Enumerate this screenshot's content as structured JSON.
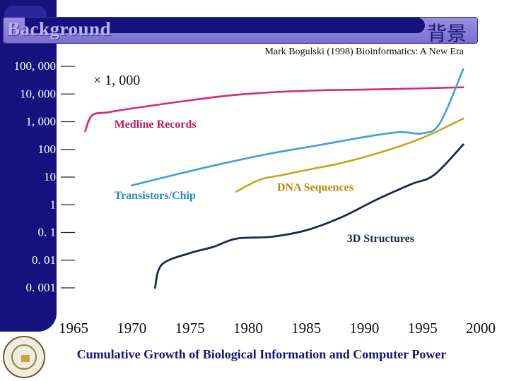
{
  "header": {
    "title": "Background",
    "title_zh": "背景",
    "source": "Mark Bogulski (1998) Bioinformatics: A New Era"
  },
  "colors": {
    "sidebar": "#15127e",
    "title_bar": "#8a7fd8",
    "medline": "#d22a73",
    "transistors": "#3f9ee0",
    "dna": "#c8a41c",
    "structures": "#1b2a4a"
  },
  "chart_data": {
    "type": "line",
    "title": "Cumulative Growth of Biological Information and Computer Power",
    "xlabel": "",
    "ylabel": "",
    "yscale": "log",
    "xlim": [
      1965,
      2000
    ],
    "ylim": [
      0.001,
      100000
    ],
    "x_ticks": [
      "1965",
      "1970",
      "1975",
      "1980",
      "1985",
      "1990",
      "1995",
      "2000"
    ],
    "y_ticks": [
      "100, 000",
      "10, 000",
      "1, 000",
      "100",
      "10",
      "1",
      "0. 1",
      "0. 01",
      "0. 001"
    ],
    "annotation": "× 1, 000",
    "series": [
      {
        "name": "Medline Records",
        "label_pos": [
          1968.5,
          600
        ],
        "points": [
          [
            1966,
            450
          ],
          [
            1966.6,
            1700
          ],
          [
            1968,
            2200
          ],
          [
            1970,
            3000
          ],
          [
            1974,
            5200
          ],
          [
            1978,
            8500
          ],
          [
            1982,
            11500
          ],
          [
            1986,
            13500
          ],
          [
            1990,
            14500
          ],
          [
            1995,
            16000
          ],
          [
            1998.5,
            17500
          ]
        ]
      },
      {
        "name": "Transistors/Chip",
        "label_pos": [
          1968.5,
          1.6
        ],
        "points": [
          [
            1970,
            5
          ],
          [
            1974,
            13
          ],
          [
            1978,
            32
          ],
          [
            1982,
            72
          ],
          [
            1986,
            140
          ],
          [
            1990,
            280
          ],
          [
            1993,
            420
          ],
          [
            1995,
            380
          ],
          [
            1996.5,
            900
          ],
          [
            1998.5,
            80000
          ]
        ]
      },
      {
        "name": "DNA Sequences",
        "label_pos": [
          1982.5,
          3.2
        ],
        "points": [
          [
            1979,
            3
          ],
          [
            1981,
            8
          ],
          [
            1983,
            12
          ],
          [
            1985,
            18
          ],
          [
            1988,
            32
          ],
          [
            1991,
            70
          ],
          [
            1994,
            180
          ],
          [
            1996,
            400
          ],
          [
            1998.5,
            1300
          ]
        ]
      },
      {
        "name": "3D Structures",
        "label_pos": [
          1988.5,
          0.045
        ],
        "points": [
          [
            1972,
            0.001
          ],
          [
            1972.6,
            0.007
          ],
          [
            1975,
            0.018
          ],
          [
            1977,
            0.03
          ],
          [
            1979,
            0.06
          ],
          [
            1982,
            0.07
          ],
          [
            1985,
            0.12
          ],
          [
            1988,
            0.35
          ],
          [
            1991,
            1.5
          ],
          [
            1994,
            5.5
          ],
          [
            1996,
            12
          ],
          [
            1998.5,
            150
          ]
        ]
      }
    ]
  },
  "footer": {
    "caption": "Cumulative Growth of Biological Information and Computer Power"
  }
}
